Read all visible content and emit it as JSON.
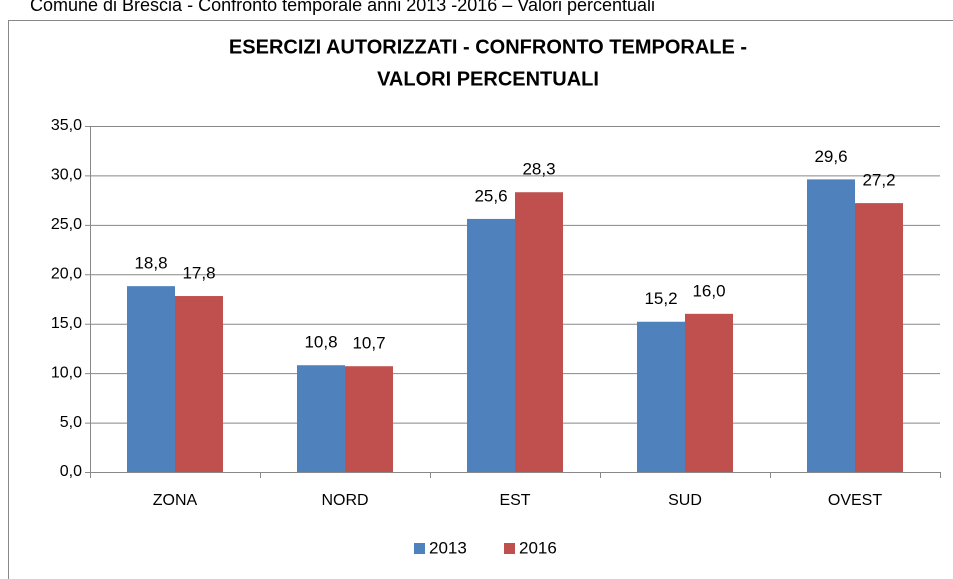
{
  "caption": "Comune di Brescia - Confronto temporale anni 2013 -2016 – Valori percentuali",
  "chart_data": {
    "type": "bar",
    "title": [
      "ESERCIZI AUTORIZZATI - CONFRONTO TEMPORALE -",
      "VALORI PERCENTUALI"
    ],
    "categories": [
      "ZONA",
      "NORD",
      "EST",
      "SUD",
      "OVEST"
    ],
    "series": [
      {
        "name": "2013",
        "color": "#4f81bd",
        "values": [
          18.8,
          10.8,
          25.6,
          15.2,
          29.6
        ],
        "value_labels": [
          "18,8",
          "10,8",
          "25,6",
          "15,2",
          "29,6"
        ]
      },
      {
        "name": "2016",
        "color": "#c0504d",
        "values": [
          17.8,
          10.7,
          28.3,
          16.0,
          27.2
        ],
        "value_labels": [
          "17,8",
          "10,7",
          "28,3",
          "16,0",
          "27,2"
        ]
      }
    ],
    "ylim": [
      0,
      35
    ],
    "yticks": [
      {
        "value": 0,
        "label": "0,0"
      },
      {
        "value": 5,
        "label": "5,0"
      },
      {
        "value": 10,
        "label": "10,0"
      },
      {
        "value": 15,
        "label": "15,0"
      },
      {
        "value": 20,
        "label": "20,0"
      },
      {
        "value": 25,
        "label": "25,0"
      },
      {
        "value": 30,
        "label": "30,0"
      },
      {
        "value": 35,
        "label": "35,0"
      }
    ],
    "grid": true,
    "legend": "bottom"
  }
}
